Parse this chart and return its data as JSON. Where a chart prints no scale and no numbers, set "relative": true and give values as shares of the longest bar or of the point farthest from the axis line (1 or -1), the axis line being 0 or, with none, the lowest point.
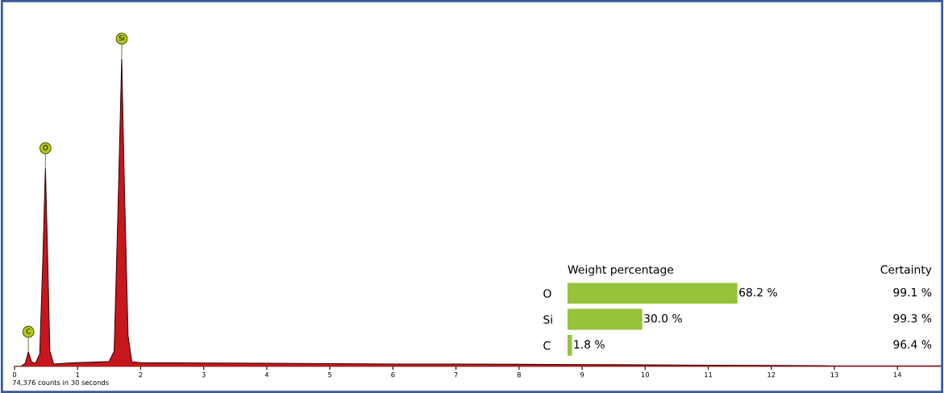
{
  "chart_data": [
    {
      "type": "area",
      "relative": true,
      "xlim": [
        0,
        14.7
      ],
      "xticks": [
        0,
        1,
        2,
        3,
        4,
        5,
        6,
        7,
        8,
        9,
        10,
        11,
        12,
        13,
        14
      ],
      "grid": false,
      "tick_labels": "x",
      "x": [
        0,
        0.1,
        0.17,
        0.22,
        0.27,
        0.33,
        0.4,
        0.45,
        0.49,
        0.52,
        0.56,
        0.62,
        0.8,
        1.0,
        1.3,
        1.5,
        1.58,
        1.64,
        1.7,
        1.74,
        1.8,
        1.86,
        2.0,
        3,
        4,
        5,
        6,
        7,
        8,
        9,
        10,
        11,
        12,
        13,
        14,
        14.7
      ],
      "series": [
        {
          "color": "#c8161d",
          "values": [
            0,
            0,
            0.01,
            0.047,
            0.015,
            0.01,
            0.04,
            0.35,
            0.644,
            0.4,
            0.05,
            0.008,
            0.01,
            0.012,
            0.014,
            0.016,
            0.05,
            0.5,
            1,
            0.6,
            0.1,
            0.015,
            0.012,
            0.011,
            0.01,
            0.009,
            0.008,
            0.008,
            0.007,
            0.006,
            0.005,
            0.004,
            0.003,
            0.002,
            0.002,
            0.002
          ]
        }
      ],
      "annotations": [
        {
          "text": "C",
          "x": 0.22,
          "y": 0.047
        },
        {
          "text": "O",
          "x": 0.49,
          "y": 0.644
        },
        {
          "text": "Si",
          "x": 1.7,
          "y": 1
        },
        "74,376 counts in 30 seconds"
      ]
    },
    {
      "type": "bar",
      "orientation": "horizontal",
      "title": "Weight percentage",
      "categories": [
        "O",
        "Si",
        "C"
      ],
      "values": [
        68.2,
        30.0,
        1.8
      ],
      "value_labels": [
        "68.2 %",
        "30.0 %",
        "1.8 %"
      ],
      "color": "#96c23c",
      "tick_labels": "y",
      "grid": false
    },
    {
      "type": "other",
      "title": "Certainty",
      "annotations": [
        "99.1 %",
        "99.3 %",
        "96.4 %"
      ]
    }
  ]
}
